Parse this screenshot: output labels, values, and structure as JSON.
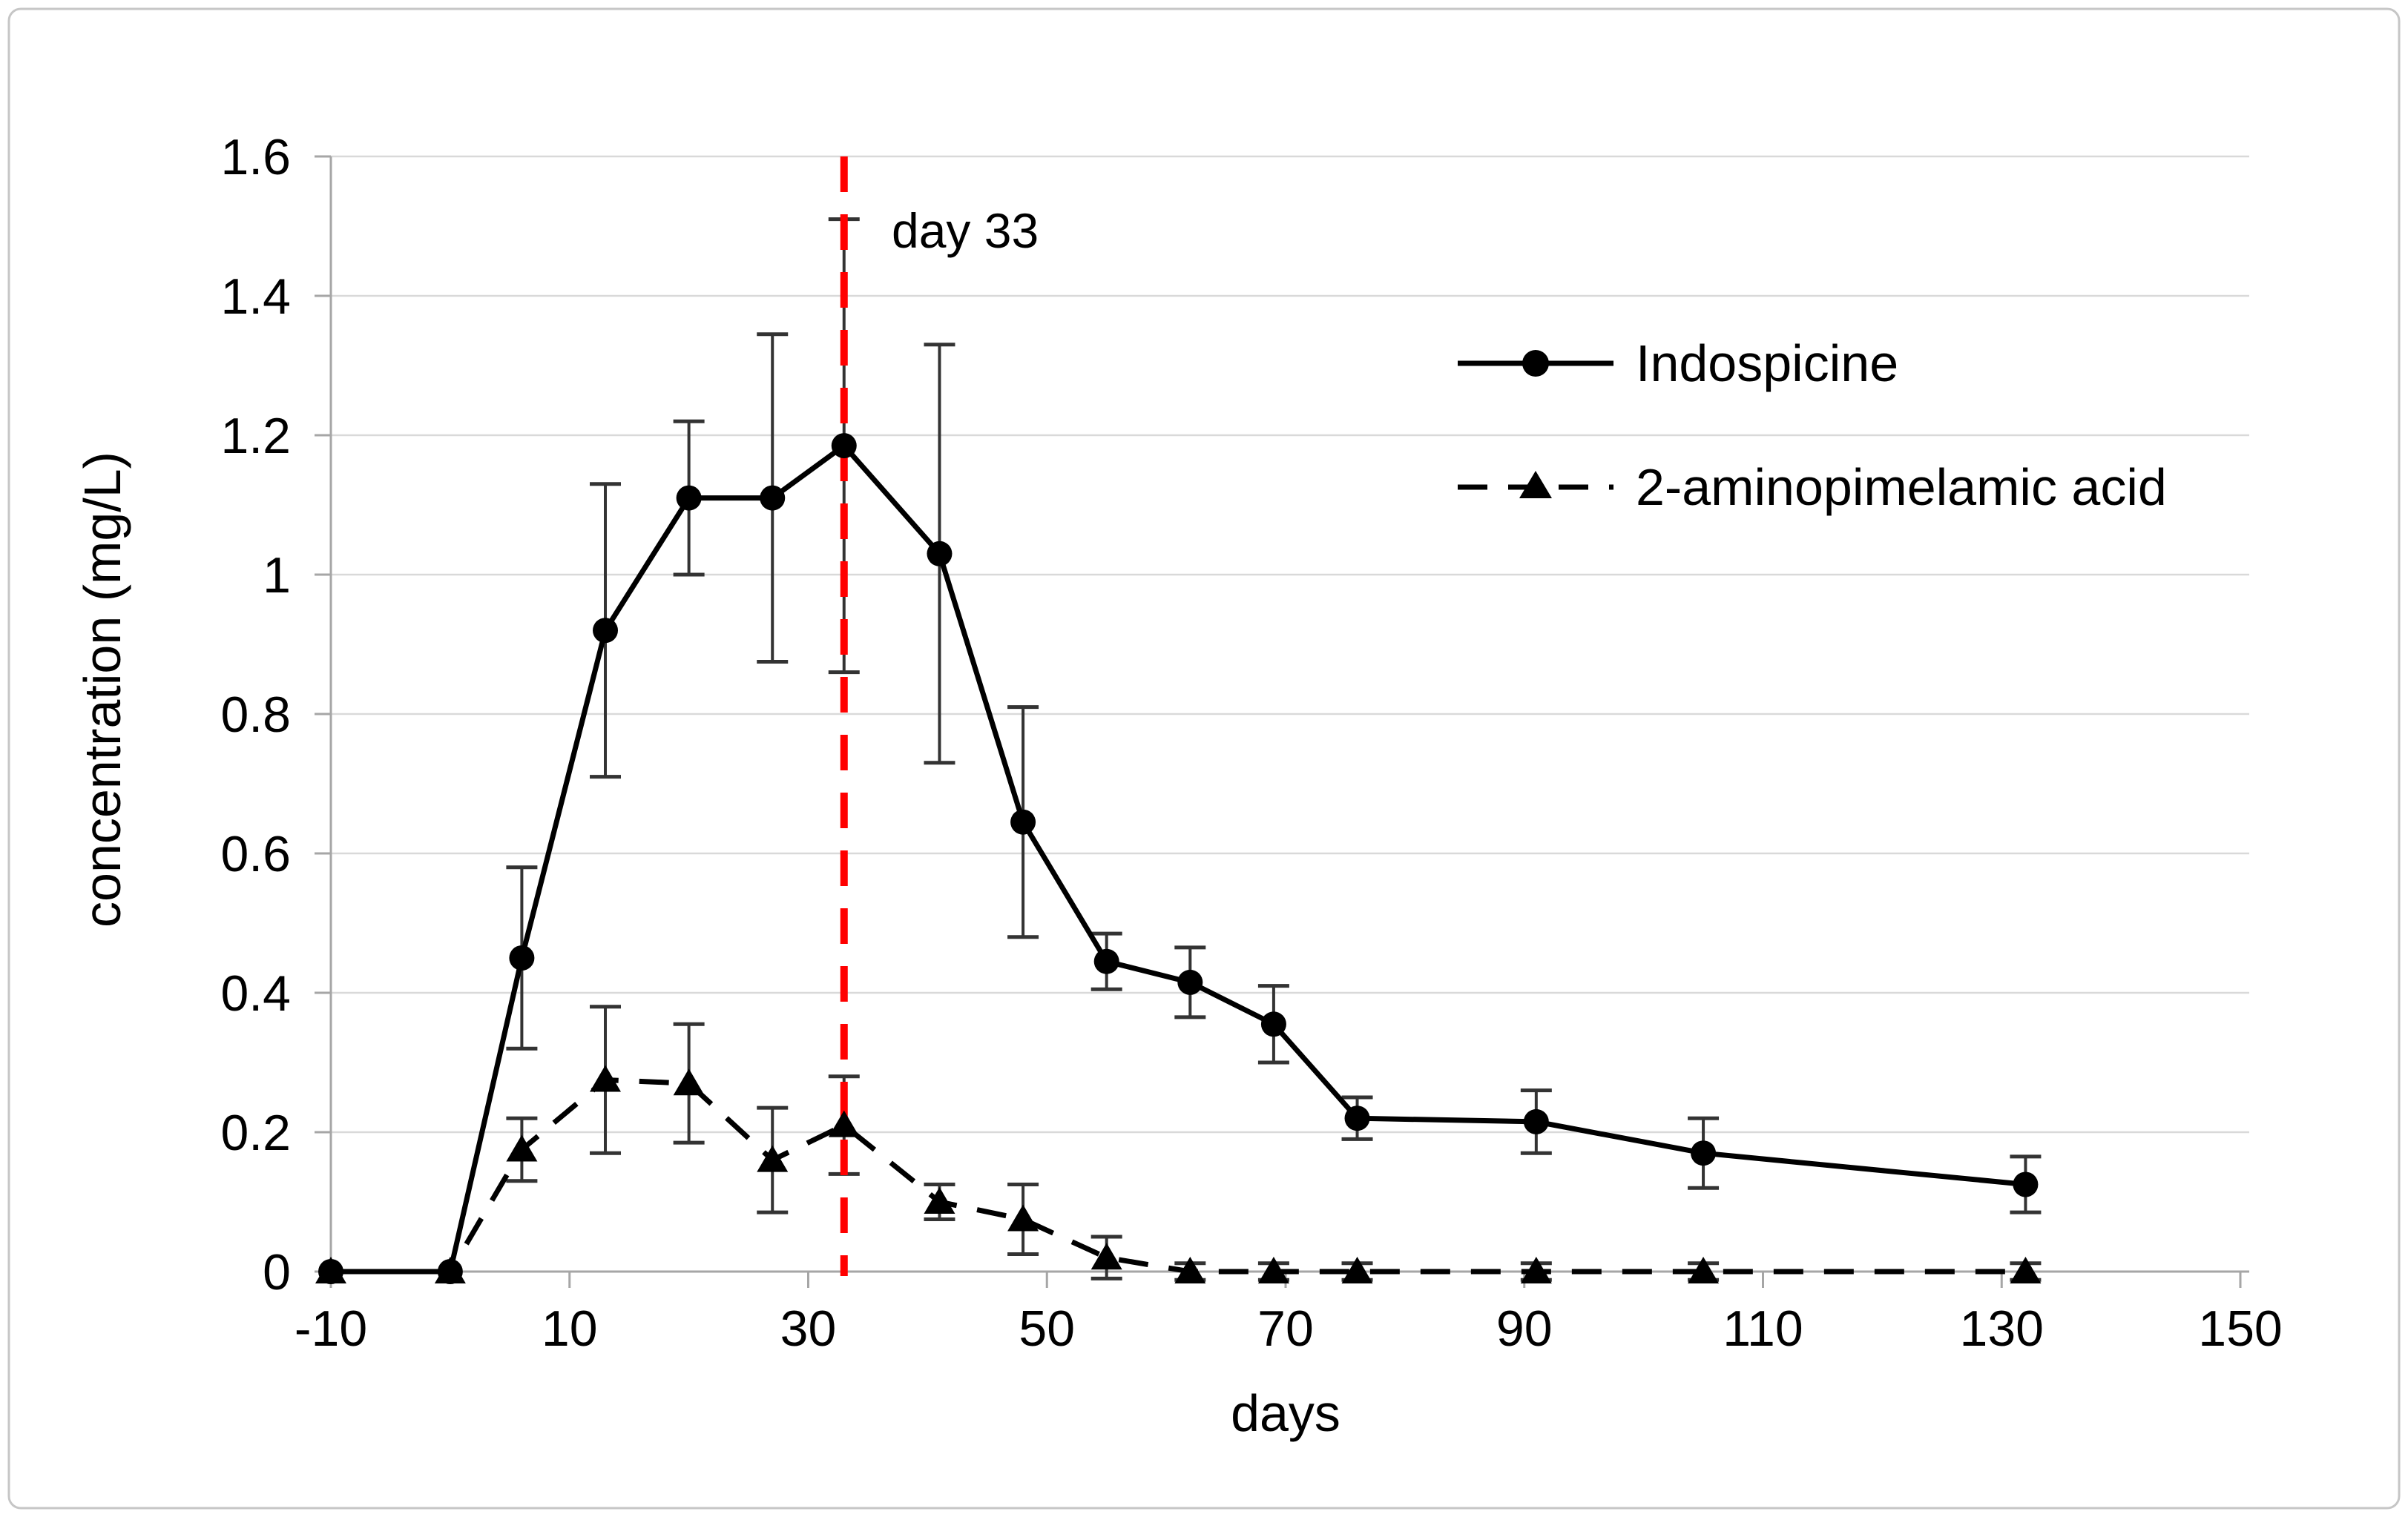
{
  "figure": {
    "background": "#ffffff",
    "border_color": "#c6c6c6"
  },
  "chart_data": {
    "type": "line",
    "title": "",
    "xlabel": "days",
    "ylabel": "concentration (mg/L)",
    "xlim": [
      -10,
      150
    ],
    "ylim": [
      0,
      1.6
    ],
    "x_ticks": [
      -10,
      10,
      30,
      50,
      70,
      90,
      110,
      130,
      150
    ],
    "y_tick_values": [
      0,
      0.2,
      0.4,
      0.6,
      0.8,
      1,
      1.2,
      1.4,
      1.6
    ],
    "y_tick_labels": [
      "0",
      "0.2",
      "0.4",
      "0.6",
      "0.8",
      "1",
      "1.2",
      "1.4",
      "1.6"
    ],
    "grid": "horizontal",
    "legend_position": "inside-upper-right",
    "annotation": {
      "label": "day 33",
      "x_day": 33,
      "color": "#FF0000"
    },
    "colors": {
      "series": "#000000",
      "grid": "#d9d9d9",
      "axis": "#a6a6a6",
      "error_bar": "#333333"
    },
    "series": [
      {
        "name": "Indospicine",
        "marker": "circle",
        "line_style": "solid",
        "x": [
          -10,
          0,
          6,
          13,
          20,
          27,
          33,
          41,
          48,
          55,
          62,
          69,
          76,
          91,
          105,
          132
        ],
        "y": [
          0,
          0,
          0.45,
          0.92,
          1.11,
          1.11,
          1.185,
          1.03,
          0.645,
          0.445,
          0.415,
          0.355,
          0.22,
          0.215,
          0.17,
          0.125
        ],
        "yerr": [
          0,
          0,
          0.13,
          0.21,
          0.11,
          0.235,
          0.325,
          0.3,
          0.165,
          0.04,
          0.05,
          0.055,
          0.03,
          0.045,
          0.05,
          0.04
        ]
      },
      {
        "name": "2-aminopimelamic acid",
        "marker": "triangle",
        "line_style": "dashed",
        "x": [
          -10,
          0,
          6,
          13,
          20,
          27,
          33,
          41,
          48,
          55,
          62,
          69,
          76,
          91,
          105,
          132
        ],
        "y": [
          0,
          0,
          0.175,
          0.275,
          0.27,
          0.16,
          0.21,
          0.1,
          0.075,
          0.02,
          0,
          0,
          0,
          0,
          0,
          0
        ],
        "yerr": [
          0,
          0,
          0.045,
          0.105,
          0.085,
          0.075,
          0.07,
          0.025,
          0.05,
          0.03,
          0.012,
          0.012,
          0.012,
          0.012,
          0.012,
          0.012
        ]
      }
    ]
  }
}
